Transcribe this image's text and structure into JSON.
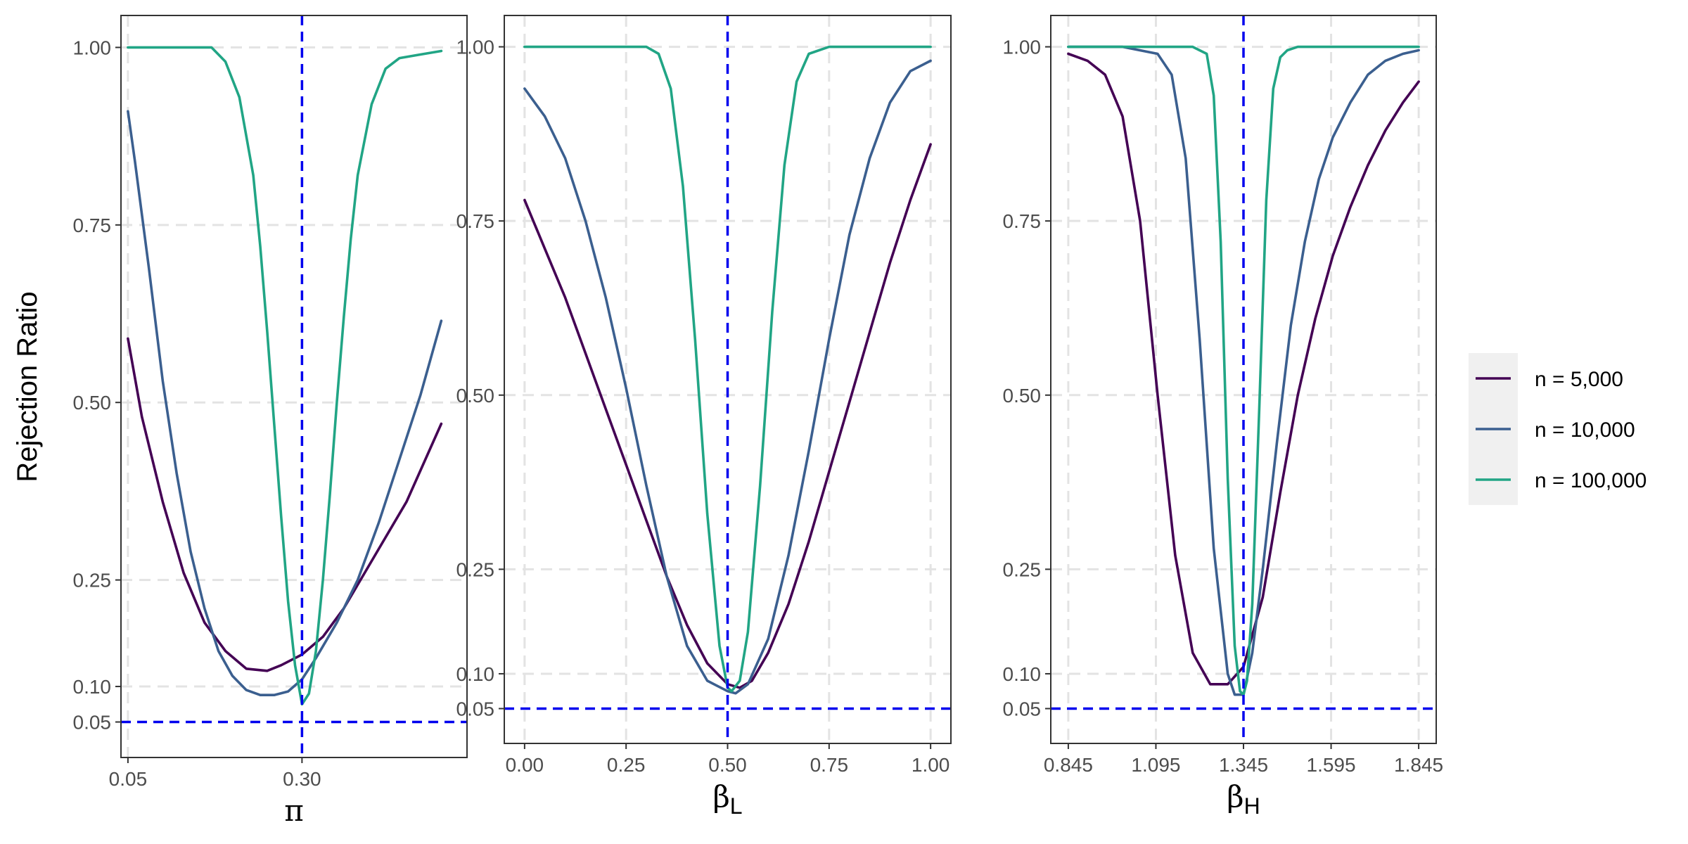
{
  "figure": {
    "ylabel": "Rejection Ratio",
    "legend_position": "right",
    "reference_line_color": "#0000ee",
    "grid_color": "#e3e3e3"
  },
  "legend": {
    "entries": [
      {
        "label": "n = 5,000",
        "color": "#440154"
      },
      {
        "label": "n = 10,000",
        "color": "#3b5f8f"
      },
      {
        "label": "n = 100,000",
        "color": "#21a585"
      }
    ]
  },
  "chart_data": [
    {
      "type": "line",
      "title": "",
      "xlabel_symbol": "π",
      "xlabel_subscript": "",
      "ylabel": "Rejection Ratio",
      "xlim": [
        0.04,
        0.537
      ],
      "ylim": [
        0.0,
        1.045
      ],
      "xticks": [
        0.05,
        0.3
      ],
      "xtick_labels": [
        "0.05",
        "0.30"
      ],
      "yticks": [
        0.05,
        0.1,
        0.25,
        0.5,
        0.75,
        1.0
      ],
      "ytick_labels": [
        "0.05",
        "0.10",
        "0.25",
        "0.50",
        "0.75",
        "1.00"
      ],
      "grid": true,
      "reference_lines": {
        "x": 0.3,
        "y": 0.05
      },
      "series": [
        {
          "name": "n = 5,000",
          "color": "#440154",
          "x": [
            0.05,
            0.07,
            0.1,
            0.13,
            0.16,
            0.19,
            0.22,
            0.25,
            0.27,
            0.3,
            0.33,
            0.36,
            0.39,
            0.42,
            0.45,
            0.5
          ],
          "y": [
            0.59,
            0.48,
            0.36,
            0.26,
            0.19,
            0.15,
            0.125,
            0.122,
            0.13,
            0.145,
            0.17,
            0.21,
            0.26,
            0.31,
            0.36,
            0.47
          ]
        },
        {
          "name": "n = 10,000",
          "color": "#3b5f8f",
          "x": [
            0.05,
            0.06,
            0.08,
            0.1,
            0.12,
            0.14,
            0.16,
            0.18,
            0.2,
            0.22,
            0.24,
            0.26,
            0.28,
            0.3,
            0.32,
            0.35,
            0.38,
            0.41,
            0.44,
            0.47,
            0.5
          ],
          "y": [
            0.91,
            0.84,
            0.69,
            0.53,
            0.4,
            0.29,
            0.21,
            0.15,
            0.115,
            0.095,
            0.088,
            0.088,
            0.093,
            0.11,
            0.14,
            0.19,
            0.25,
            0.33,
            0.42,
            0.51,
            0.615
          ]
        },
        {
          "name": "n = 100,000",
          "color": "#21a585",
          "x": [
            0.05,
            0.1,
            0.17,
            0.19,
            0.21,
            0.23,
            0.24,
            0.25,
            0.26,
            0.27,
            0.28,
            0.29,
            0.3,
            0.31,
            0.32,
            0.33,
            0.34,
            0.35,
            0.36,
            0.37,
            0.38,
            0.4,
            0.42,
            0.44,
            0.47,
            0.5
          ],
          "y": [
            1.0,
            1.0,
            1.0,
            0.98,
            0.93,
            0.82,
            0.72,
            0.6,
            0.47,
            0.34,
            0.22,
            0.13,
            0.075,
            0.09,
            0.15,
            0.25,
            0.37,
            0.5,
            0.62,
            0.73,
            0.82,
            0.92,
            0.97,
            0.985,
            0.99,
            0.995
          ]
        }
      ]
    },
    {
      "type": "line",
      "title": "",
      "xlabel_symbol": "β",
      "xlabel_subscript": "L",
      "ylabel": "",
      "xlim": [
        -0.05,
        1.05
      ],
      "ylim": [
        0.0,
        1.045
      ],
      "xticks": [
        0.0,
        0.25,
        0.5,
        0.75,
        1.0
      ],
      "xtick_labels": [
        "0.00",
        "0.25",
        "0.50",
        "0.75",
        "1.00"
      ],
      "yticks": [
        0.05,
        0.1,
        0.25,
        0.5,
        0.75,
        1.0
      ],
      "ytick_labels": [
        "0.05",
        "0.10",
        "0.25",
        "0.50",
        "0.75",
        "1.00"
      ],
      "grid": true,
      "reference_lines": {
        "x": 0.5,
        "y": 0.05
      },
      "series": [
        {
          "name": "n = 5,000",
          "color": "#440154",
          "x": [
            0.0,
            0.05,
            0.1,
            0.15,
            0.2,
            0.25,
            0.3,
            0.35,
            0.4,
            0.45,
            0.5,
            0.53,
            0.56,
            0.6,
            0.65,
            0.7,
            0.75,
            0.8,
            0.85,
            0.9,
            0.95,
            1.0
          ],
          "y": [
            0.78,
            0.71,
            0.64,
            0.56,
            0.48,
            0.4,
            0.32,
            0.24,
            0.17,
            0.115,
            0.085,
            0.08,
            0.09,
            0.13,
            0.2,
            0.29,
            0.39,
            0.49,
            0.59,
            0.69,
            0.78,
            0.86
          ]
        },
        {
          "name": "n = 10,000",
          "color": "#3b5f8f",
          "x": [
            0.0,
            0.05,
            0.1,
            0.15,
            0.2,
            0.25,
            0.3,
            0.35,
            0.4,
            0.45,
            0.5,
            0.52,
            0.55,
            0.6,
            0.65,
            0.7,
            0.75,
            0.8,
            0.85,
            0.9,
            0.95,
            1.0
          ],
          "y": [
            0.94,
            0.9,
            0.84,
            0.75,
            0.64,
            0.51,
            0.37,
            0.24,
            0.14,
            0.09,
            0.075,
            0.072,
            0.085,
            0.15,
            0.27,
            0.42,
            0.58,
            0.73,
            0.84,
            0.92,
            0.965,
            0.98
          ]
        },
        {
          "name": "n = 100,000",
          "color": "#21a585",
          "x": [
            0.0,
            0.2,
            0.3,
            0.33,
            0.36,
            0.39,
            0.42,
            0.45,
            0.48,
            0.5,
            0.51,
            0.53,
            0.55,
            0.58,
            0.61,
            0.64,
            0.67,
            0.7,
            0.75,
            0.8,
            1.0
          ],
          "y": [
            1.0,
            1.0,
            1.0,
            0.99,
            0.94,
            0.8,
            0.58,
            0.33,
            0.14,
            0.08,
            0.075,
            0.09,
            0.16,
            0.37,
            0.62,
            0.83,
            0.95,
            0.99,
            1.0,
            1.0,
            1.0
          ]
        }
      ]
    },
    {
      "type": "line",
      "title": "",
      "xlabel_symbol": "β",
      "xlabel_subscript": "H",
      "ylabel": "",
      "xlim": [
        0.795,
        1.895
      ],
      "ylim": [
        0.0,
        1.045
      ],
      "xticks": [
        0.845,
        1.095,
        1.345,
        1.595,
        1.845
      ],
      "xtick_labels": [
        "0.845",
        "1.095",
        "1.345",
        "1.595",
        "1.845"
      ],
      "yticks": [
        0.05,
        0.1,
        0.25,
        0.5,
        0.75,
        1.0
      ],
      "ytick_labels": [
        "0.05",
        "0.10",
        "0.25",
        "0.50",
        "0.75",
        "1.00"
      ],
      "grid": true,
      "reference_lines": {
        "x": 1.345,
        "y": 0.05
      },
      "series": [
        {
          "name": "n = 5,000",
          "color": "#440154",
          "x": [
            0.845,
            0.9,
            0.95,
            1.0,
            1.05,
            1.1,
            1.15,
            1.2,
            1.25,
            1.3,
            1.345,
            1.4,
            1.45,
            1.5,
            1.55,
            1.6,
            1.65,
            1.7,
            1.75,
            1.8,
            1.845
          ],
          "y": [
            0.99,
            0.98,
            0.96,
            0.9,
            0.75,
            0.5,
            0.27,
            0.13,
            0.085,
            0.085,
            0.11,
            0.21,
            0.36,
            0.5,
            0.61,
            0.7,
            0.77,
            0.83,
            0.88,
            0.92,
            0.95
          ]
        },
        {
          "name": "n = 10,000",
          "color": "#3b5f8f",
          "x": [
            0.845,
            1.0,
            1.1,
            1.14,
            1.18,
            1.22,
            1.26,
            1.3,
            1.32,
            1.345,
            1.37,
            1.4,
            1.44,
            1.48,
            1.52,
            1.56,
            1.6,
            1.65,
            1.7,
            1.75,
            1.8,
            1.845
          ],
          "y": [
            1.0,
            1.0,
            0.99,
            0.96,
            0.84,
            0.58,
            0.28,
            0.1,
            0.07,
            0.07,
            0.13,
            0.25,
            0.43,
            0.6,
            0.72,
            0.81,
            0.87,
            0.92,
            0.96,
            0.98,
            0.99,
            0.995
          ]
        },
        {
          "name": "n = 100,000",
          "color": "#21a585",
          "x": [
            0.845,
            1.0,
            1.2,
            1.24,
            1.26,
            1.28,
            1.3,
            1.32,
            1.335,
            1.345,
            1.355,
            1.37,
            1.39,
            1.41,
            1.43,
            1.45,
            1.47,
            1.5,
            1.6,
            1.845
          ],
          "y": [
            1.0,
            1.0,
            1.0,
            0.99,
            0.93,
            0.72,
            0.38,
            0.14,
            0.075,
            0.07,
            0.09,
            0.2,
            0.48,
            0.78,
            0.94,
            0.985,
            0.995,
            1.0,
            1.0,
            1.0
          ]
        }
      ]
    }
  ]
}
